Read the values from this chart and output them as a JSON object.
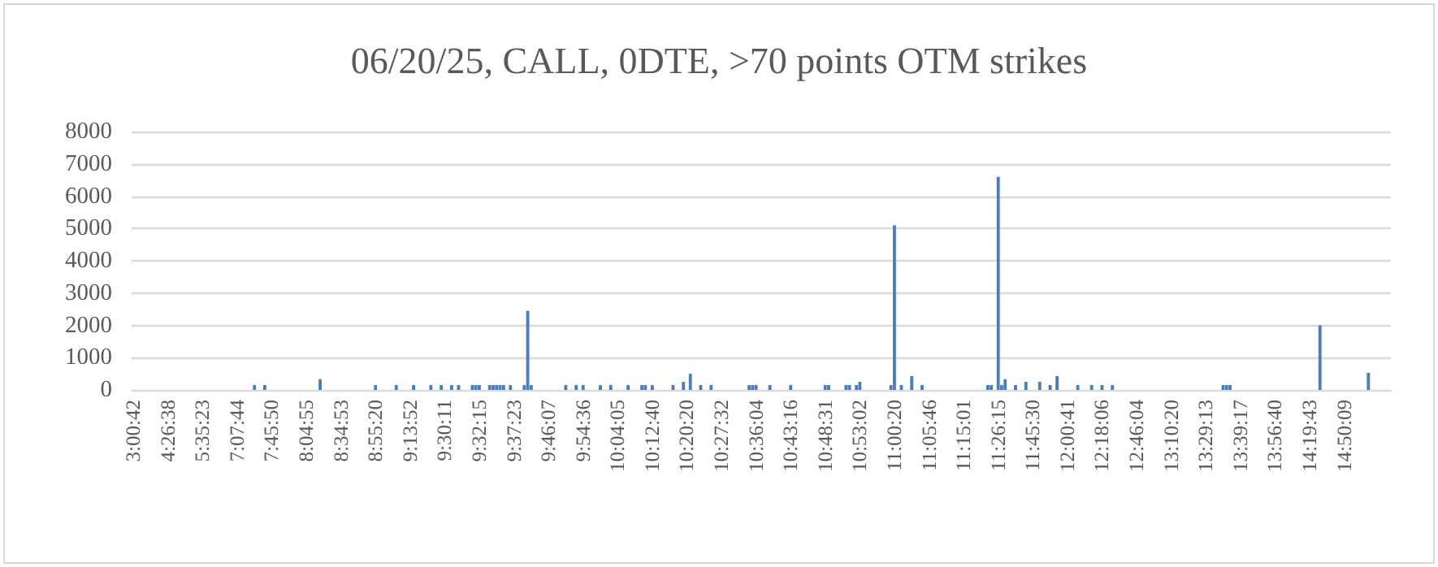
{
  "chart_data": {
    "type": "bar",
    "title": "06/20/25, CALL, 0DTE, >70 points OTM strikes",
    "categories": [
      "3:00:42",
      null,
      null,
      null,
      null,
      null,
      null,
      null,
      null,
      null,
      "4:26:38",
      null,
      null,
      null,
      null,
      null,
      null,
      null,
      null,
      null,
      "5:35:23",
      null,
      null,
      null,
      null,
      null,
      null,
      null,
      null,
      null,
      "7:07:44",
      null,
      null,
      null,
      null,
      null,
      null,
      null,
      null,
      null,
      "7:45:50",
      null,
      null,
      null,
      null,
      null,
      null,
      null,
      null,
      null,
      "8:04:55",
      null,
      null,
      null,
      null,
      null,
      null,
      null,
      null,
      null,
      "8:34:53",
      null,
      null,
      null,
      null,
      null,
      null,
      null,
      null,
      null,
      "8:55:20",
      null,
      null,
      null,
      null,
      null,
      null,
      null,
      null,
      null,
      "9:13:52",
      null,
      null,
      null,
      null,
      null,
      null,
      null,
      null,
      null,
      "9:30:11",
      null,
      null,
      null,
      null,
      null,
      null,
      null,
      null,
      null,
      "9:32:15",
      null,
      null,
      null,
      null,
      null,
      null,
      null,
      null,
      null,
      "9:37:23",
      null,
      null,
      null,
      null,
      null,
      null,
      null,
      null,
      null,
      "9:46:07",
      null,
      null,
      null,
      null,
      null,
      null,
      null,
      null,
      null,
      "9:54:36",
      null,
      null,
      null,
      null,
      null,
      null,
      null,
      null,
      null,
      "10:04:05",
      null,
      null,
      null,
      null,
      null,
      null,
      null,
      null,
      null,
      "10:12:40",
      null,
      null,
      null,
      null,
      null,
      null,
      null,
      null,
      null,
      "10:20:20",
      null,
      null,
      null,
      null,
      null,
      null,
      null,
      null,
      null,
      "10:27:32",
      null,
      null,
      null,
      null,
      null,
      null,
      null,
      null,
      null,
      "10:36:04",
      null,
      null,
      null,
      null,
      null,
      null,
      null,
      null,
      null,
      "10:43:16",
      null,
      null,
      null,
      null,
      null,
      null,
      null,
      null,
      null,
      "10:48:31",
      null,
      null,
      null,
      null,
      null,
      null,
      null,
      null,
      null,
      "10:53:02",
      null,
      null,
      null,
      null,
      null,
      null,
      null,
      null,
      null,
      "11:00:20",
      null,
      null,
      null,
      null,
      null,
      null,
      null,
      null,
      null,
      "11:05:46",
      null,
      null,
      null,
      null,
      null,
      null,
      null,
      null,
      null,
      "11:15:01",
      null,
      null,
      null,
      null,
      null,
      null,
      null,
      null,
      null,
      "11:26:15",
      null,
      null,
      null,
      null,
      null,
      null,
      null,
      null,
      null,
      "11:45:30",
      null,
      null,
      null,
      null,
      null,
      null,
      null,
      null,
      null,
      "12:00:41",
      null,
      null,
      null,
      null,
      null,
      null,
      null,
      null,
      null,
      "12:18:06",
      null,
      null,
      null,
      null,
      null,
      null,
      null,
      null,
      null,
      "12:46:04",
      null,
      null,
      null,
      null,
      null,
      null,
      null,
      null,
      null,
      "13:10:20",
      null,
      null,
      null,
      null,
      null,
      null,
      null,
      null,
      null,
      "13:29:13",
      null,
      null,
      null,
      null,
      null,
      null,
      null,
      null,
      null,
      "13:39:17",
      null,
      null,
      null,
      null,
      null,
      null,
      null,
      null,
      null,
      "13:56:40",
      null,
      null,
      null,
      null,
      null,
      null,
      null,
      null,
      null,
      "14:19:43",
      null,
      null,
      null,
      null,
      null,
      null,
      null,
      null,
      null,
      "14:50:09",
      null,
      null,
      null,
      null,
      null,
      null,
      null,
      null,
      null,
      null,
      null,
      null,
      null
    ],
    "values": [
      null,
      null,
      null,
      null,
      null,
      null,
      null,
      null,
      null,
      null,
      null,
      null,
      null,
      null,
      null,
      null,
      null,
      null,
      null,
      null,
      null,
      null,
      null,
      null,
      null,
      null,
      null,
      null,
      null,
      null,
      null,
      null,
      null,
      null,
      null,
      150,
      null,
      null,
      150,
      null,
      null,
      null,
      null,
      null,
      null,
      null,
      null,
      null,
      null,
      null,
      null,
      null,
      null,
      null,
      330,
      null,
      null,
      null,
      null,
      null,
      null,
      null,
      null,
      null,
      null,
      null,
      null,
      null,
      null,
      null,
      150,
      null,
      null,
      null,
      null,
      null,
      150,
      null,
      null,
      null,
      null,
      150,
      null,
      null,
      null,
      null,
      150,
      null,
      null,
      150,
      null,
      null,
      150,
      null,
      150,
      null,
      null,
      null,
      150,
      150,
      150,
      null,
      null,
      150,
      150,
      150,
      150,
      150,
      null,
      150,
      null,
      null,
      null,
      150,
      2450,
      150,
      null,
      null,
      null,
      null,
      null,
      null,
      null,
      null,
      null,
      150,
      null,
      null,
      150,
      null,
      150,
      null,
      null,
      null,
      null,
      150,
      null,
      null,
      150,
      null,
      null,
      null,
      null,
      150,
      null,
      null,
      null,
      150,
      150,
      null,
      150,
      null,
      null,
      null,
      null,
      null,
      150,
      null,
      null,
      250,
      null,
      500,
      null,
      null,
      150,
      null,
      null,
      150,
      null,
      null,
      null,
      null,
      null,
      null,
      null,
      null,
      null,
      null,
      150,
      150,
      150,
      null,
      null,
      null,
      150,
      null,
      null,
      null,
      null,
      null,
      150,
      null,
      null,
      null,
      null,
      null,
      null,
      null,
      null,
      null,
      150,
      150,
      null,
      null,
      null,
      null,
      150,
      150,
      null,
      150,
      250,
      null,
      null,
      null,
      null,
      null,
      null,
      null,
      null,
      150,
      5100,
      null,
      150,
      null,
      null,
      430,
      null,
      null,
      150,
      null,
      null,
      null,
      null,
      null,
      null,
      null,
      null,
      null,
      null,
      null,
      null,
      null,
      null,
      null,
      null,
      null,
      null,
      150,
      150,
      null,
      6600,
      150,
      330,
      null,
      null,
      150,
      null,
      null,
      250,
      null,
      null,
      null,
      250,
      null,
      null,
      150,
      null,
      430,
      null,
      null,
      null,
      null,
      null,
      150,
      null,
      null,
      null,
      150,
      null,
      null,
      150,
      null,
      null,
      150,
      null,
      null,
      null,
      null,
      null,
      null,
      null,
      null,
      null,
      null,
      null,
      null,
      null,
      null,
      null,
      null,
      null,
      null,
      null,
      null,
      null,
      null,
      null,
      null,
      null,
      null,
      null,
      null,
      null,
      null,
      null,
      150,
      150,
      150,
      null,
      null,
      null,
      null,
      null,
      null,
      null,
      null,
      null,
      null,
      null,
      null,
      null,
      null,
      null,
      null,
      null,
      null,
      null,
      null,
      null,
      null,
      null,
      null,
      null,
      2000,
      null,
      null,
      null,
      null,
      null,
      null,
      null,
      null,
      null,
      null,
      null,
      null,
      null,
      530,
      null,
      null,
      null,
      null,
      null,
      null
    ],
    "color": "#4a7ebb",
    "ylim": [
      0,
      8000
    ],
    "yticks": [
      0,
      1000,
      2000,
      3000,
      4000,
      5000,
      6000,
      7000,
      8000
    ],
    "grid": "y"
  }
}
